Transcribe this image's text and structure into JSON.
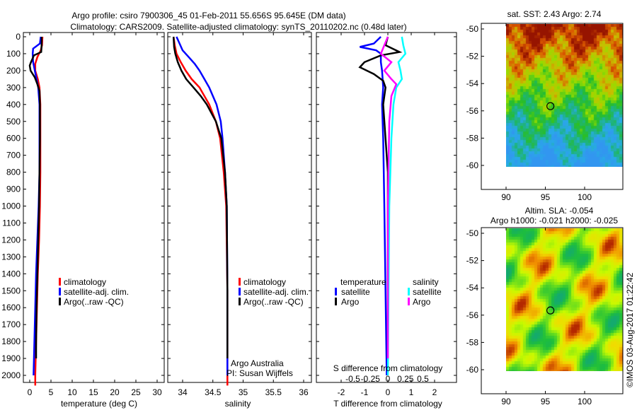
{
  "title_line1": "Argo profile: csiro 7900306_45 01-Feb-2011 55.656S 95.645E (DM data)",
  "title_line2": "Climatology: CARS2009. Satellite-adjusted climatology: synTS_20110202.nc (0.48d later)",
  "colors": {
    "climatology": "#ff0000",
    "satellite": "#0000ff",
    "argo": "#000000",
    "sal_satellite": "#00ffff",
    "sal_argo": "#ff00ff"
  },
  "chart_data": [
    {
      "type": "line",
      "xlabel": "temperature (deg C)",
      "ylabel": "",
      "xlim": [
        -2,
        32
      ],
      "ylim": [
        2060,
        0
      ],
      "xticks": [
        0,
        5,
        10,
        15,
        20,
        25,
        30
      ],
      "yticks": [
        0,
        100,
        200,
        300,
        400,
        500,
        600,
        700,
        800,
        900,
        1000,
        1100,
        1200,
        1300,
        1400,
        1500,
        1600,
        1700,
        1800,
        1900,
        2000
      ],
      "legend": [
        "climatology",
        "satellite-adj. clim.",
        "Argo(..raw -QC)"
      ],
      "series": [
        {
          "name": "climatology",
          "depth": [
            0,
            50,
            80,
            120,
            160,
            200,
            250,
            300,
            400,
            600,
            800,
            1000,
            1200,
            1400,
            1600,
            1800,
            2000,
            2060
          ],
          "values": [
            3.0,
            2.9,
            2.6,
            1.8,
            1.3,
            1.3,
            1.9,
            2.3,
            2.5,
            2.5,
            2.5,
            2.4,
            2.2,
            1.9,
            1.7,
            1.5,
            1.3,
            1.3
          ]
        },
        {
          "name": "satellite-adj. clim.",
          "depth": [
            0,
            40,
            70,
            100,
            150,
            200,
            250,
            300,
            400,
            600,
            800,
            1000,
            1200,
            1400,
            1600,
            1800,
            2000
          ],
          "values": [
            2.6,
            2.4,
            0.8,
            0.7,
            0.8,
            1.2,
            1.6,
            2.0,
            2.3,
            2.3,
            2.3,
            2.1,
            1.8,
            1.5,
            1.3,
            1.1,
            0.9
          ]
        },
        {
          "name": "Argo(..raw -QC)",
          "depth": [
            0,
            50,
            90,
            110,
            150,
            170,
            200,
            240,
            280,
            320,
            400,
            600,
            800,
            1000,
            1200,
            1400,
            1600,
            1800,
            1900
          ],
          "values": [
            2.8,
            2.8,
            2.7,
            1.0,
            0.3,
            0.0,
            0.2,
            1.2,
            1.8,
            2.3,
            2.4,
            2.4,
            2.3,
            2.2,
            2.0,
            1.8,
            1.6,
            1.5,
            1.5
          ]
        }
      ]
    },
    {
      "type": "line",
      "xlabel": "salinity",
      "xlim": [
        33.75,
        36.1
      ],
      "ylim": [
        2060,
        0
      ],
      "xticks": [
        34,
        34.5,
        35,
        35.5,
        36
      ],
      "xticklabels": [
        "34",
        "34.5",
        "35",
        "35.5",
        "36"
      ],
      "legend": [
        "climatology",
        "satellite-adj. clim.",
        "Argo(..raw -QC)"
      ],
      "annotations": [
        "Argo Australia",
        "PI: Susan Wijffels"
      ],
      "series": [
        {
          "name": "climatology",
          "depth": [
            0,
            50,
            100,
            150,
            200,
            250,
            300,
            400,
            500,
            600,
            800,
            1000,
            1500,
            2000,
            2060
          ],
          "values": [
            33.85,
            33.87,
            33.9,
            33.97,
            34.05,
            34.15,
            34.28,
            34.44,
            34.55,
            34.62,
            34.68,
            34.72,
            34.74,
            34.74,
            34.74
          ]
        },
        {
          "name": "satellite-adj. clim.",
          "depth": [
            0,
            40,
            80,
            120,
            160,
            200,
            250,
            300,
            400,
            500,
            600,
            800,
            1000,
            1500,
            2000
          ],
          "values": [
            33.9,
            33.95,
            34.0,
            34.1,
            34.2,
            34.28,
            34.36,
            34.44,
            34.56,
            34.63,
            34.66,
            34.7,
            34.73,
            34.74,
            34.74
          ]
        },
        {
          "name": "Argo(..raw -QC)",
          "depth": [
            0,
            60,
            100,
            150,
            200,
            250,
            300,
            350,
            400,
            500,
            600,
            800,
            1000,
            1500,
            1900
          ],
          "values": [
            33.85,
            33.86,
            33.88,
            33.92,
            33.98,
            34.06,
            34.18,
            34.3,
            34.4,
            34.55,
            34.64,
            34.7,
            34.73,
            34.74,
            34.74
          ]
        }
      ]
    },
    {
      "type": "line",
      "xlabel": "T difference from climatology",
      "xlabel2": "S difference from climatology",
      "xlim": [
        -2.95,
        3.0
      ],
      "ylim": [
        2060,
        0
      ],
      "xticks": [
        -2,
        -1,
        0,
        1,
        2
      ],
      "sticks": [
        -0.5,
        -0.25,
        0,
        0.25,
        0.5
      ],
      "sticklabels": [
        "-0.5",
        "-0.25",
        "0",
        "0.25",
        "0.5"
      ],
      "legend_temperature_title": "temperature",
      "legend_salinity_title": "salinity",
      "series": [
        {
          "name": "temperature satellite",
          "axis": "T",
          "depth": [
            0,
            40,
            60,
            80,
            100,
            150,
            200,
            300,
            400,
            600,
            1000,
            1500,
            2000
          ],
          "values": [
            -0.3,
            -0.6,
            -1.2,
            -0.5,
            -0.3,
            -0.3,
            -0.25,
            -0.2,
            -0.25,
            -0.2,
            -0.15,
            -0.1,
            -0.05
          ]
        },
        {
          "name": "temperature Argo",
          "axis": "T",
          "depth": [
            0,
            50,
            90,
            110,
            150,
            180,
            220,
            260,
            300,
            400,
            600,
            800,
            1000,
            1500,
            1900
          ],
          "values": [
            0.0,
            -0.1,
            0.5,
            -0.3,
            -1.0,
            -1.2,
            -0.6,
            -0.2,
            -0.1,
            -0.2,
            -0.1,
            0.0,
            0.0,
            0.0,
            0.0
          ]
        },
        {
          "name": "salinity satellite",
          "axis": "S",
          "depth": [
            0,
            50,
            100,
            150,
            200,
            250,
            300,
            400,
            600,
            1000,
            1500,
            2000
          ],
          "values": [
            0.2,
            0.22,
            0.25,
            0.15,
            0.18,
            0.2,
            0.12,
            0.08,
            0.05,
            0.02,
            0.01,
            0.0
          ]
        },
        {
          "name": "salinity Argo",
          "axis": "S",
          "depth": [
            0,
            50,
            100,
            150,
            200,
            250,
            280,
            350,
            500,
            1000,
            1500,
            1900
          ],
          "values": [
            0.0,
            -0.05,
            -0.1,
            0.05,
            -0.05,
            0.05,
            0.12,
            0.05,
            0.02,
            0.0,
            0.0,
            0.0
          ]
        }
      ]
    },
    {
      "type": "heatmap",
      "title": "sat. SST: 2.43 Argo: 2.74",
      "xticks": [
        90,
        95,
        100
      ],
      "yticks": [
        -50,
        -52,
        -54,
        -56,
        -58,
        -60
      ],
      "palette": "sst",
      "marker": {
        "lon": 95.645,
        "lat": -55.656
      }
    },
    {
      "type": "heatmap",
      "title": "Altim. SLA: -0.054",
      "subtitle": "Argo h1000: -0.021 h2000: -0.025",
      "xticks": [
        90,
        95,
        100
      ],
      "yticks": [
        -50,
        -52,
        -54,
        -56,
        -58,
        -60
      ],
      "palette": "sla",
      "marker": {
        "lon": 95.645,
        "lat": -55.656
      }
    }
  ],
  "labels": {
    "temp_legend": [
      "climatology",
      "satellite-adj. clim.",
      "Argo(..raw -QC)"
    ],
    "sal_legend": [
      "climatology",
      "satellite-adj. clim.",
      "Argo(..raw -QC)"
    ],
    "diff_t_items": [
      "satellite",
      "Argo"
    ],
    "diff_s_items": [
      "satellite",
      "Argo"
    ],
    "copyright": "©IMOS 03-Aug-2017 01:22:42"
  }
}
